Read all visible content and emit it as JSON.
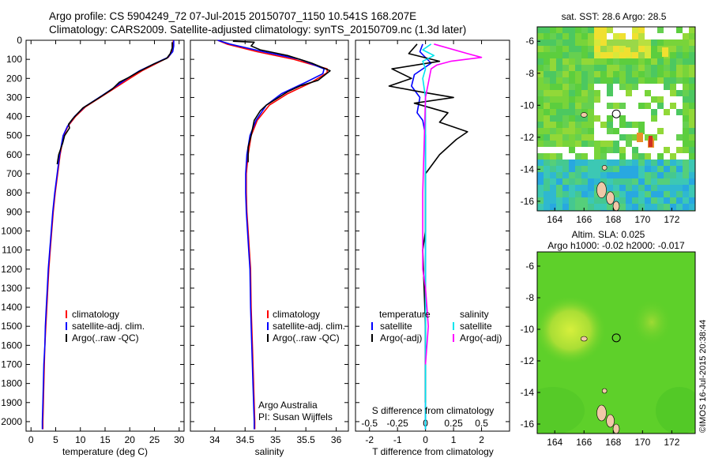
{
  "header": {
    "line1": "Argo profile: CS 5904249_72 07-Jul-2015 20150707_1150 10.541S 168.207E",
    "line2": "Climatology: CARS2009. Satellite-adjusted climatology: synTS_20150709.nc (1.3d later)"
  },
  "colors": {
    "clim": "#ff0000",
    "sat": "#0000ff",
    "argo": "#000000",
    "salsat": "#00e5ee",
    "salargo": "#ff00ff"
  },
  "chart_data": [
    {
      "type": "line",
      "id": "temperature",
      "xlabel": "temperature (deg C)",
      "xlim": [
        -1,
        31
      ],
      "ylim": [
        0,
        2050
      ],
      "xticks": [
        "0",
        "5",
        "10",
        "15",
        "20",
        "25",
        "30"
      ],
      "yticks": [
        "0",
        "100",
        "200",
        "300",
        "400",
        "500",
        "600",
        "700",
        "800",
        "900",
        "1000",
        "1100",
        "1200",
        "1300",
        "1400",
        "1500",
        "1600",
        "1700",
        "1800",
        "1900",
        "2000"
      ],
      "legend": [
        "climatology",
        "satellite-adj. clim.",
        "Argo(..raw -QC)"
      ],
      "series": [
        {
          "name": "climatology",
          "color": "#ff0000",
          "points": [
            [
              28.8,
              0
            ],
            [
              28.8,
              30
            ],
            [
              28.6,
              60
            ],
            [
              27.8,
              90
            ],
            [
              25.5,
              120
            ],
            [
              22.5,
              160
            ],
            [
              20,
              200
            ],
            [
              17,
              250
            ],
            [
              14,
              300
            ],
            [
              11,
              350
            ],
            [
              9,
              400
            ],
            [
              7.5,
              450
            ],
            [
              6.6,
              500
            ],
            [
              5.9,
              600
            ],
            [
              5.4,
              700
            ],
            [
              4.9,
              800
            ],
            [
              4.5,
              900
            ],
            [
              4.2,
              1000
            ],
            [
              3.9,
              1100
            ],
            [
              3.6,
              1200
            ],
            [
              3.4,
              1300
            ],
            [
              3.2,
              1400
            ],
            [
              3.0,
              1500
            ],
            [
              2.8,
              1600
            ],
            [
              2.7,
              1700
            ],
            [
              2.6,
              1800
            ],
            [
              2.5,
              1900
            ],
            [
              2.4,
              2000
            ],
            [
              2.4,
              2040
            ]
          ]
        },
        {
          "name": "satellite-adj. clim.",
          "color": "#0000ff",
          "points": [
            [
              28.9,
              0
            ],
            [
              28.9,
              30
            ],
            [
              28.7,
              60
            ],
            [
              27.7,
              90
            ],
            [
              25.2,
              120
            ],
            [
              22.0,
              160
            ],
            [
              19.5,
              200
            ],
            [
              16.7,
              250
            ],
            [
              13.8,
              300
            ],
            [
              10.8,
              350
            ],
            [
              8.8,
              400
            ],
            [
              7.4,
              450
            ],
            [
              6.5,
              500
            ],
            [
              5.8,
              600
            ],
            [
              5.3,
              700
            ],
            [
              4.8,
              800
            ],
            [
              4.4,
              900
            ],
            [
              4.1,
              1000
            ],
            [
              3.8,
              1100
            ],
            [
              3.5,
              1200
            ],
            [
              3.3,
              1300
            ],
            [
              3.1,
              1400
            ],
            [
              2.9,
              1500
            ],
            [
              2.8,
              1600
            ],
            [
              2.6,
              1700
            ],
            [
              2.5,
              1800
            ],
            [
              2.4,
              1900
            ],
            [
              2.3,
              2000
            ],
            [
              2.3,
              2040
            ]
          ]
        },
        {
          "name": "Argo(..raw -QC)",
          "color": "#000000",
          "points": [
            [
              28.6,
              10
            ],
            [
              28.6,
              40
            ],
            [
              28.2,
              70
            ],
            [
              27.5,
              95
            ],
            [
              24.8,
              125
            ],
            [
              21.8,
              165
            ],
            [
              19.8,
              195
            ],
            [
              17.9,
              220
            ],
            [
              16.5,
              255
            ],
            [
              13.6,
              305
            ],
            [
              10.5,
              355
            ],
            [
              8.5,
              410
            ],
            [
              7.6,
              440
            ],
            [
              7.8,
              460
            ],
            [
              6.8,
              500
            ],
            [
              6.4,
              540
            ],
            [
              5.6,
              600
            ],
            [
              5.3,
              650
            ]
          ]
        }
      ]
    },
    {
      "type": "line",
      "id": "salinity",
      "xlabel": "salinity",
      "xlim": [
        33.6,
        36.2
      ],
      "ylim": [
        0,
        2050
      ],
      "xticks": [
        "34",
        "34.5",
        "35",
        "35.5",
        "36"
      ],
      "legend": [
        "climatology",
        "satellite-adj. clim.",
        "Argo(..raw -QC)"
      ],
      "annotation": [
        "Argo Australia",
        "PI: Susan Wijffels"
      ],
      "series": [
        {
          "name": "climatology",
          "color": "#ff0000",
          "points": [
            [
              34.05,
              0
            ],
            [
              34.2,
              20
            ],
            [
              34.7,
              60
            ],
            [
              35.3,
              100
            ],
            [
              35.85,
              150
            ],
            [
              35.85,
              170
            ],
            [
              35.6,
              220
            ],
            [
              35.2,
              280
            ],
            [
              34.9,
              340
            ],
            [
              34.7,
              420
            ],
            [
              34.6,
              500
            ],
            [
              34.55,
              600
            ],
            [
              34.52,
              700
            ],
            [
              34.52,
              800
            ],
            [
              34.53,
              900
            ],
            [
              34.55,
              1000
            ],
            [
              34.57,
              1100
            ],
            [
              34.59,
              1200
            ],
            [
              34.6,
              1400
            ],
            [
              34.62,
              1600
            ],
            [
              34.64,
              1800
            ],
            [
              34.66,
              2000
            ],
            [
              34.66,
              2040
            ]
          ]
        },
        {
          "name": "satellite-adj. clim.",
          "color": "#0000ff",
          "points": [
            [
              34.05,
              0
            ],
            [
              34.25,
              20
            ],
            [
              34.8,
              60
            ],
            [
              35.4,
              100
            ],
            [
              35.8,
              150
            ],
            [
              35.78,
              175
            ],
            [
              35.5,
              220
            ],
            [
              35.1,
              280
            ],
            [
              34.85,
              340
            ],
            [
              34.68,
              420
            ],
            [
              34.58,
              500
            ],
            [
              34.53,
              600
            ],
            [
              34.51,
              700
            ],
            [
              34.51,
              800
            ],
            [
              34.52,
              900
            ],
            [
              34.54,
              1000
            ],
            [
              34.56,
              1100
            ],
            [
              34.58,
              1200
            ],
            [
              34.59,
              1400
            ],
            [
              34.61,
              1600
            ],
            [
              34.63,
              1800
            ],
            [
              34.65,
              2000
            ],
            [
              34.65,
              2040
            ]
          ]
        },
        {
          "name": "Argo(..raw -QC)",
          "color": "#000000",
          "points": [
            [
              34.3,
              5
            ],
            [
              34.65,
              10
            ],
            [
              34.6,
              30
            ],
            [
              34.75,
              50
            ],
            [
              35.2,
              80
            ],
            [
              35.6,
              120
            ],
            [
              35.9,
              160
            ],
            [
              35.7,
              210
            ],
            [
              35.4,
              240
            ],
            [
              35.2,
              270
            ],
            [
              35.0,
              310
            ],
            [
              34.85,
              340
            ],
            [
              34.75,
              370
            ],
            [
              34.65,
              420
            ],
            [
              34.6,
              500
            ],
            [
              34.55,
              560
            ],
            [
              34.55,
              640
            ]
          ]
        }
      ]
    },
    {
      "type": "line",
      "id": "difference",
      "xlabel": "T difference from climatology",
      "xlabel2": "S difference from climatology",
      "xlim": [
        -2.5,
        3.0
      ],
      "ylim": [
        0,
        2050
      ],
      "xticks": [
        "-2",
        "-1",
        "0",
        "1",
        "2"
      ],
      "xticks2": [
        "-0.5",
        "-0.25",
        "0",
        "0.25",
        "0.5"
      ],
      "legend_headers": [
        "temperature",
        "salinity"
      ],
      "legend": [
        "satellite",
        "Argo(-adj)",
        "satellite",
        "Argo(-adj)"
      ],
      "series": [
        {
          "name": "T satellite",
          "color": "#0000ff",
          "points": [
            [
              -0.1,
              20
            ],
            [
              -0.2,
              60
            ],
            [
              0.2,
              120
            ],
            [
              -0.4,
              180
            ],
            [
              -0.5,
              240
            ],
            [
              -0.2,
              300
            ],
            [
              -0.3,
              380
            ],
            [
              -0.1,
              420
            ],
            [
              0,
              500
            ],
            [
              0,
              2040
            ]
          ]
        },
        {
          "name": "T Argo(-adj)",
          "color": "#000000",
          "points": [
            [
              -0.3,
              20
            ],
            [
              -0.6,
              70
            ],
            [
              0.5,
              110
            ],
            [
              -1.2,
              150
            ],
            [
              -0.5,
              200
            ],
            [
              -1.3,
              240
            ],
            [
              -0.2,
              270
            ],
            [
              1.0,
              300
            ],
            [
              -0.4,
              330
            ],
            [
              0.8,
              380
            ],
            [
              0.5,
              430
            ],
            [
              1.5,
              480
            ],
            [
              1.1,
              520
            ],
            [
              0.5,
              600
            ],
            [
              0,
              700
            ],
            [
              0,
              1000
            ],
            [
              -0.1,
              1100
            ],
            [
              0,
              1500
            ],
            [
              0,
              1900
            ]
          ]
        },
        {
          "name": "S satellite",
          "color": "#00e5ee",
          "points": [
            [
              0.2,
              20
            ],
            [
              -0.1,
              50
            ],
            [
              0.3,
              80
            ],
            [
              -0.1,
              110
            ],
            [
              0,
              150
            ],
            [
              -0.1,
              200
            ],
            [
              0,
              300
            ],
            [
              0,
              2040
            ]
          ]
        },
        {
          "name": "S Argo(-adj)",
          "color": "#ff00ff",
          "points": [
            [
              0.3,
              20
            ],
            [
              1.5,
              70
            ],
            [
              2.0,
              90
            ],
            [
              0.9,
              110
            ],
            [
              0.4,
              130
            ],
            [
              0.2,
              150
            ],
            [
              0,
              300
            ],
            [
              -0.1,
              800
            ],
            [
              -0.1,
              1200
            ],
            [
              0,
              1300
            ],
            [
              0.1,
              1500
            ],
            [
              0,
              1700
            ]
          ]
        }
      ]
    },
    {
      "type": "heatmap",
      "id": "sst-map",
      "title": "sat. SST: 28.6  Argo: 28.5",
      "xticks": [
        "164",
        "166",
        "168",
        "170",
        "172"
      ],
      "yticks": [
        "-6",
        "-8",
        "-10",
        "-12",
        "-14",
        "-16"
      ],
      "xlim": [
        162.8,
        173.6
      ],
      "ylim": [
        -16.6,
        -5.1
      ],
      "marker": {
        "lon": 168.207,
        "lat": -10.541
      }
    },
    {
      "type": "heatmap",
      "id": "sla-map",
      "title": "Altim. SLA: 0.025",
      "subtitle": "Argo h1000: -0.02  h2000: -0.017",
      "xticks": [
        "164",
        "166",
        "168",
        "170",
        "172"
      ],
      "yticks": [
        "-6",
        "-8",
        "-10",
        "-12",
        "-14",
        "-16"
      ],
      "xlim": [
        162.8,
        173.6
      ],
      "ylim": [
        -16.6,
        -5.1
      ],
      "marker": {
        "lon": 168.207,
        "lat": -10.541
      }
    }
  ],
  "footer": {
    "credit": "©IMOS 16-Jul-2015 20:38:44"
  }
}
